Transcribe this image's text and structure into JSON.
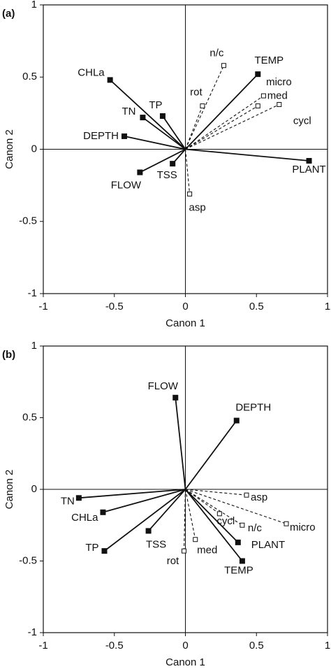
{
  "chart_data": [
    {
      "type": "biplot",
      "panel_label": "(a)",
      "x_label": "Canon 1",
      "y_label": "Canon 2",
      "xlim": [
        -1,
        1
      ],
      "ylim": [
        -1,
        1
      ],
      "xticks": [
        -1,
        -0.5,
        0,
        0.5,
        1
      ],
      "yticks": [
        -1,
        -0.5,
        0,
        0.5,
        1
      ],
      "series": [
        {
          "line_style": "solid",
          "marker": "filled-square",
          "color": "#111111",
          "labels": [
            "CHLa",
            "TN",
            "TP",
            "DEPTH",
            "FLOW",
            "TSS",
            "PLANT",
            "TEMP"
          ],
          "x": [
            -0.53,
            -0.3,
            -0.16,
            -0.43,
            -0.32,
            -0.09,
            0.87,
            0.51
          ],
          "y": [
            0.48,
            0.22,
            0.23,
            0.09,
            -0.16,
            -0.1,
            -0.08,
            0.52
          ]
        },
        {
          "line_style": "dashed",
          "marker": "open-square",
          "color": "#111111",
          "labels": [
            "n/c",
            "rot",
            "micro",
            "med",
            "cycl",
            "asp"
          ],
          "x": [
            0.27,
            0.12,
            0.55,
            0.51,
            0.66,
            0.03
          ],
          "y": [
            0.58,
            0.3,
            0.37,
            0.3,
            0.31,
            -0.31
          ]
        }
      ]
    },
    {
      "type": "biplot",
      "panel_label": "(b)",
      "x_label": "Canon 1",
      "y_label": "Canon 2",
      "xlim": [
        -1,
        1
      ],
      "ylim": [
        -1,
        1
      ],
      "xticks": [
        -1,
        -0.5,
        0,
        0.5,
        1
      ],
      "yticks": [
        -1,
        -0.5,
        0,
        0.5,
        1
      ],
      "series": [
        {
          "line_style": "solid",
          "marker": "filled-square",
          "color": "#111111",
          "labels": [
            "FLOW",
            "DEPTH",
            "TN",
            "CHLa",
            "TP",
            "TSS",
            "PLANT",
            "TEMP"
          ],
          "x": [
            -0.07,
            0.36,
            -0.75,
            -0.58,
            -0.57,
            -0.26,
            0.37,
            0.4
          ],
          "y": [
            0.64,
            0.48,
            -0.06,
            -0.16,
            -0.43,
            -0.29,
            -0.37,
            -0.5
          ]
        },
        {
          "line_style": "dashed",
          "marker": "open-square",
          "color": "#111111",
          "labels": [
            "asp",
            "micro",
            "n/c",
            "cycl",
            "med",
            "rot"
          ],
          "x": [
            0.43,
            0.71,
            0.4,
            0.24,
            0.07,
            -0.01
          ],
          "y": [
            -0.04,
            -0.24,
            -0.25,
            -0.17,
            -0.35,
            -0.43
          ]
        }
      ]
    }
  ]
}
